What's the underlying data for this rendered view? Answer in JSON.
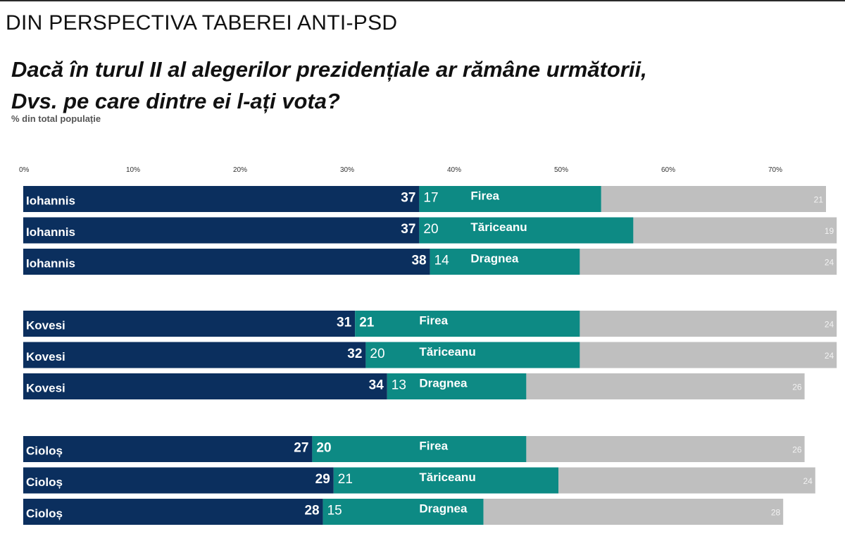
{
  "header": {
    "text": "DIN PERSPECTIVA TABEREI ANTI-PSD"
  },
  "question": {
    "line1": "Dacă în turul II al alegerilor prezidențiale ar rămâne următorii,",
    "line2": "Dvs. pe care dintre ei l-ați vota?"
  },
  "subtitle": "% din total populație",
  "colors": {
    "candidate": "#0b2f5e",
    "opponent": "#0d8a84",
    "other": "#bfbfbf"
  },
  "chart_data": {
    "type": "bar",
    "orientation": "horizontal",
    "stacked": true,
    "xlim": [
      0,
      76
    ],
    "ticks": [
      "0%",
      "10%",
      "20%",
      "30%",
      "40%",
      "50%",
      "60%",
      "70%"
    ],
    "groups": [
      {
        "rows": [
          {
            "candidate": "Iohannis",
            "candidate_value": 37,
            "opponent": "Firea",
            "opponent_value": 17,
            "opponent_value_bold": false,
            "other_value": 21
          },
          {
            "candidate": "Iohannis",
            "candidate_value": 37,
            "opponent": "Tăriceanu",
            "opponent_value": 20,
            "opponent_value_bold": false,
            "other_value": 19
          },
          {
            "candidate": "Iohannis",
            "candidate_value": 38,
            "opponent": "Dragnea",
            "opponent_value": 14,
            "opponent_value_bold": false,
            "other_value": 24
          }
        ]
      },
      {
        "rows": [
          {
            "candidate": "Kovesi",
            "candidate_value": 31,
            "opponent": "Firea",
            "opponent_value": 21,
            "opponent_value_bold": true,
            "other_value": 24
          },
          {
            "candidate": "Kovesi",
            "candidate_value": 32,
            "opponent": "Tăriceanu",
            "opponent_value": 20,
            "opponent_value_bold": false,
            "other_value": 24
          },
          {
            "candidate": "Kovesi",
            "candidate_value": 34,
            "opponent": "Dragnea",
            "opponent_value": 13,
            "opponent_value_bold": false,
            "other_value": 26
          }
        ]
      },
      {
        "rows": [
          {
            "candidate": "Cioloș",
            "candidate_value": 27,
            "opponent": "Firea",
            "opponent_value": 20,
            "opponent_value_bold": true,
            "other_value": 26
          },
          {
            "candidate": "Cioloș",
            "candidate_value": 29,
            "opponent": "Tăriceanu",
            "opponent_value": 21,
            "opponent_value_bold": false,
            "other_value": 24
          },
          {
            "candidate": "Cioloș",
            "candidate_value": 28,
            "opponent": "Dragnea",
            "opponent_value": 15,
            "opponent_value_bold": false,
            "other_value": 28
          }
        ]
      }
    ]
  }
}
